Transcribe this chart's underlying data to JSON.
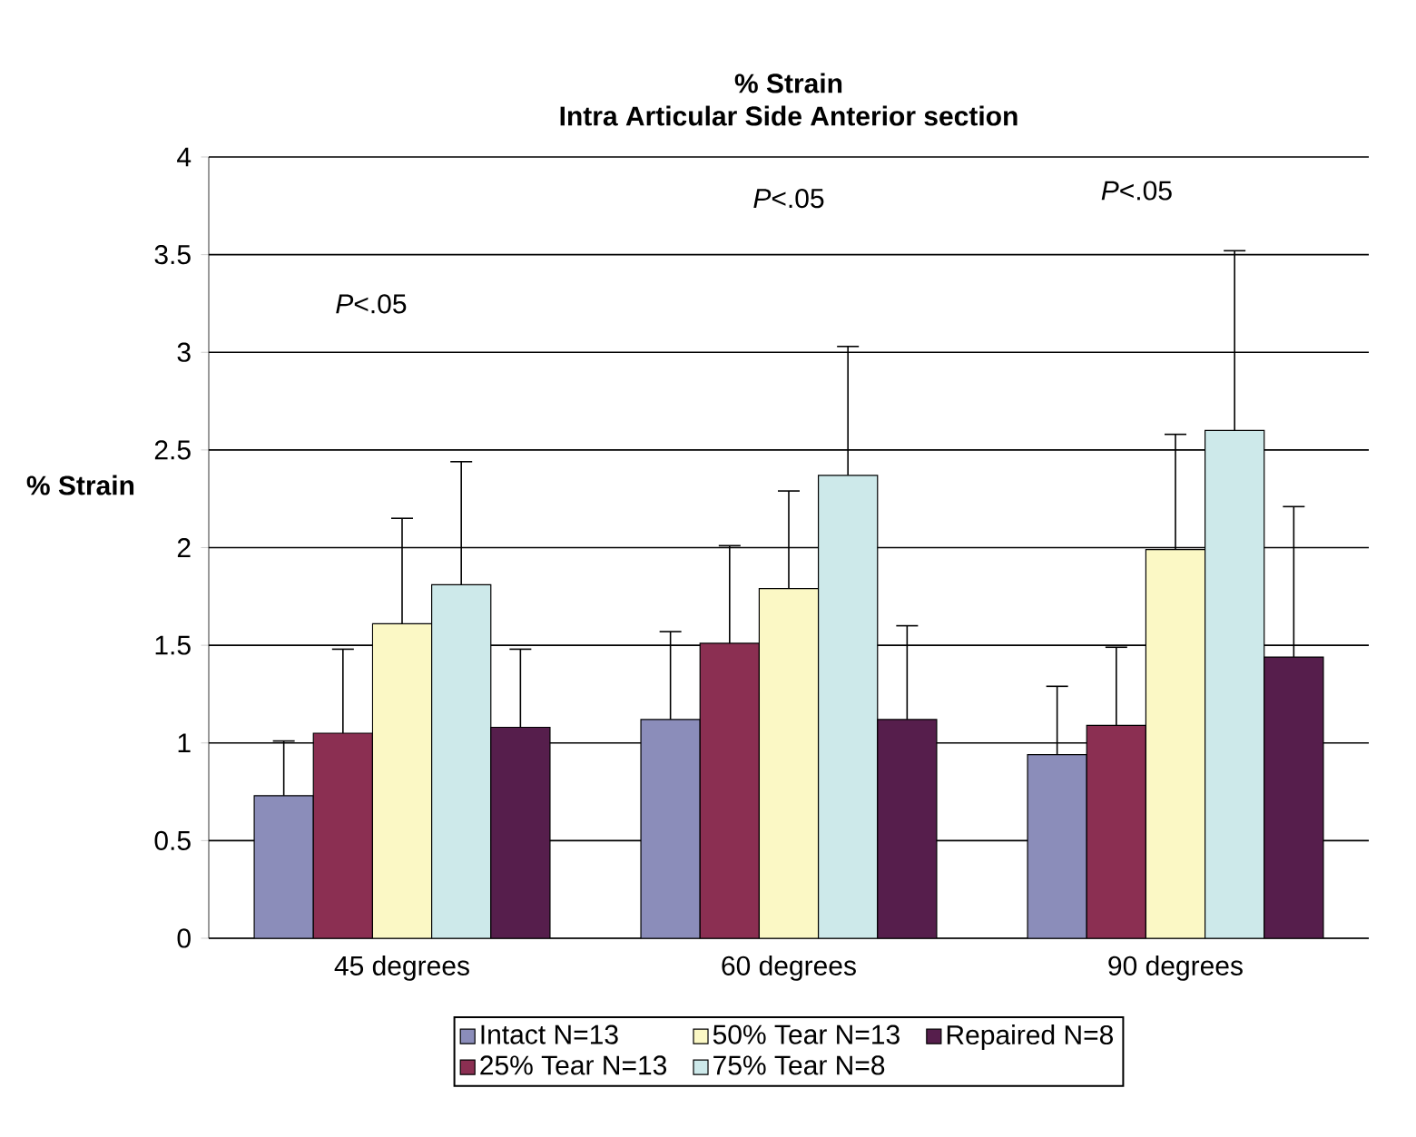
{
  "chart_data": {
    "type": "bar",
    "title": "% Strain",
    "subtitle": "Intra Articular Side Anterior section",
    "ylabel": "% Strain",
    "categories": [
      "45 degrees",
      "60 degrees",
      "90 degrees"
    ],
    "series": [
      {
        "name": "Intact N=13",
        "color": "#8b8dba",
        "values": [
          0.73,
          1.12,
          0.94
        ],
        "errors": [
          [
            0.73,
            1.01
          ],
          [
            1.12,
            1.57
          ],
          [
            0.94,
            1.29
          ]
        ]
      },
      {
        "name": "25% Tear N=13",
        "color": "#8b2f52",
        "values": [
          1.05,
          1.51,
          1.09
        ],
        "errors": [
          [
            1.05,
            1.48
          ],
          [
            1.51,
            2.01
          ],
          [
            1.09,
            1.49
          ]
        ]
      },
      {
        "name": "50% Tear N=13",
        "color": "#fbf8c5",
        "values": [
          1.61,
          1.79,
          1.99
        ],
        "errors": [
          [
            1.61,
            2.15
          ],
          [
            1.79,
            2.29
          ],
          [
            1.99,
            2.58
          ]
        ]
      },
      {
        "name": "75% Tear N=8",
        "color": "#cde9ea",
        "values": [
          1.81,
          2.37,
          2.6
        ],
        "errors": [
          [
            1.81,
            2.44
          ],
          [
            2.37,
            3.03
          ],
          [
            2.6,
            3.52
          ]
        ]
      },
      {
        "name": "Repaired N=8",
        "color": "#561e4c",
        "values": [
          1.08,
          1.12,
          1.44
        ],
        "errors": [
          [
            1.08,
            1.48
          ],
          [
            1.12,
            1.6
          ],
          [
            1.44,
            2.21
          ]
        ]
      }
    ],
    "ylim": [
      0,
      4
    ],
    "yticks": [
      0,
      0.5,
      1,
      1.5,
      2,
      2.5,
      3,
      3.5,
      4
    ],
    "grid": "y",
    "legend": "bottom",
    "annotations": [
      "*P*<.05",
      "*P*<.05",
      "*P*<.05"
    ]
  }
}
